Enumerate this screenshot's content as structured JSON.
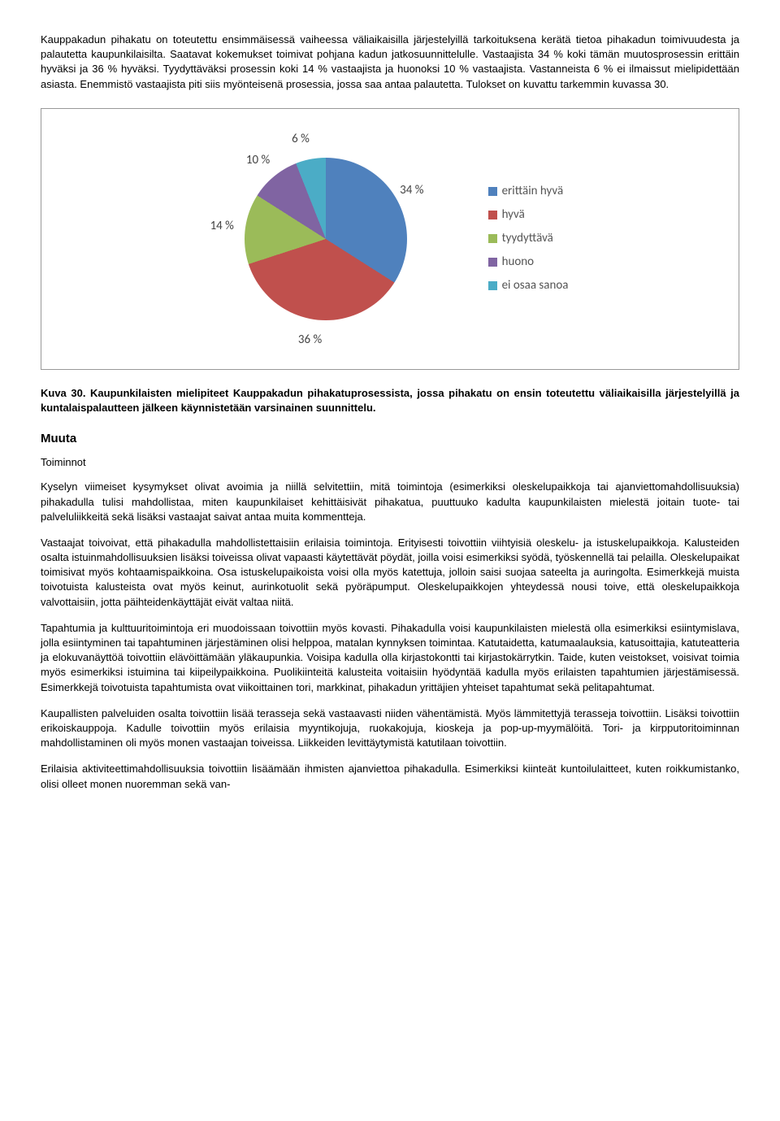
{
  "para1": "Kauppakadun pihakatu on toteutettu ensimmäisessä vaiheessa väliaikaisilla järjestelyillä tarkoituksena kerätä tietoa pihakadun toimivuudesta ja palautetta kaupunkilaisilta. Saatavat kokemukset toimivat pohjana kadun jatkosuunnittelulle. Vastaajista 34 % koki tämän muutosprosessin erittäin hyväksi ja 36 % hyväksi. Tyydyttäväksi prosessin koki 14 % vastaajista ja huonoksi 10 % vastaajista. Vastanneista 6 % ei ilmaissut mielipidettään asiasta. Enemmistö vastaajista piti siis myönteisenä prosessia, jossa saa antaa palautetta. Tulokset on kuvattu tarkemmin kuvassa 30.",
  "chart": {
    "type": "pie",
    "background_color": "#ffffff",
    "label_fontsize": 15,
    "slices": [
      {
        "label": "erittäin hyvä",
        "value": 34,
        "text": "34 %",
        "color": "#4f81bd"
      },
      {
        "label": "hyvä",
        "value": 36,
        "text": "36 %",
        "color": "#c0504d"
      },
      {
        "label": "tyydyttävä",
        "value": 14,
        "text": "14 %",
        "color": "#9bbb59"
      },
      {
        "label": "huono",
        "value": 10,
        "text": "10 %",
        "color": "#8064a2"
      },
      {
        "label": "ei osaa sanoa",
        "value": 6,
        "text": "6 %",
        "color": "#4bacc6"
      }
    ]
  },
  "caption": "Kuva 30. Kaupunkilaisten mielipiteet Kauppakadun pihakatuprosessista, jossa pihakatu on ensin toteutettu väliaikaisilla järjestelyillä ja kuntalaispalautteen jälkeen käynnistetään varsinainen suunnittelu.",
  "h2": "Muuta",
  "h3": "Toiminnot",
  "para2": "Kyselyn viimeiset kysymykset olivat avoimia ja niillä selvitettiin, mitä toimintoja (esimerkiksi oleskelupaikkoja tai ajanviettomahdollisuuksia) pihakadulla tulisi mahdollistaa, miten kaupunkilaiset kehittäisivät pihakatua, puuttuuko kadulta kaupunkilaisten mielestä joitain tuote- tai palveluliikkeitä sekä lisäksi vastaajat saivat antaa muita kommentteja.",
  "para3": "Vastaajat toivoivat, että pihakadulla mahdollistettaisiin erilaisia toimintoja. Erityisesti toivottiin viihtyisiä oleskelu- ja istuskelupaikkoja. Kalusteiden osalta istuinmahdollisuuksien lisäksi toiveissa olivat vapaasti käytettävät pöydät, joilla voisi esimerkiksi syödä, työskennellä tai pelailla. Oleskelupaikat toimisivat myös kohtaamispaikkoina. Osa istuskelupaikoista voisi olla myös katettuja, jolloin saisi suojaa sateelta ja auringolta. Esimerkkejä muista toivotuista kalusteista ovat myös keinut, aurinkotuolit sekä pyöräpumput. Oleskelupaikkojen yhteydessä nousi toive, että oleskelupaikkoja valvottaisiin, jotta päihteidenkäyttäjät eivät valtaa niitä.",
  "para4": "Tapahtumia ja kulttuuritoimintoja eri muodoissaan toivottiin myös kovasti. Pihakadulla voisi kaupunkilaisten mielestä olla esimerkiksi esiintymislava, jolla esiintyminen tai tapahtuminen järjestäminen olisi helppoa, matalan kynnyksen toimintaa. Katutaidetta, katumaalauksia, katusoittajia, katuteatteria ja elokuvanäyttöä toivottiin elävöittämään yläkaupunkia. Voisipa kadulla olla kirjastokontti tai kirjastokärrytkin. Taide, kuten veistokset, voisivat toimia myös esimerkiksi istuimina tai kiipeilypaikkoina. Puolikiinteitä kalusteita voitaisiin hyödyntää kadulla myös erilaisten tapahtumien järjestämisessä. Esimerkkejä toivotuista tapahtumista ovat viikoittainen tori, markkinat, pihakadun yrittäjien yhteiset tapahtumat sekä pelitapahtumat.",
  "para5": "Kaupallisten palveluiden osalta toivottiin lisää terasseja sekä vastaavasti niiden vähentämistä. Myös lämmitettyjä terasseja toivottiin. Lisäksi toivottiin erikoiskauppoja. Kadulle toivottiin myös erilaisia myyntikojuja, ruokakojuja, kioskeja ja pop-up-myymälöitä. Tori- ja kirpputoritoiminnan mahdollistaminen oli myös monen vastaajan toiveissa. Liikkeiden levittäytymistä katutilaan toivottiin.",
  "para6": "Erilaisia aktiviteettimahdollisuuksia toivottiin lisäämään ihmisten ajanviettoa pihakadulla. Esimerkiksi kiinteät kuntoilulaitteet, kuten roikkumistanko, olisi olleet monen nuoremman sekä van-"
}
